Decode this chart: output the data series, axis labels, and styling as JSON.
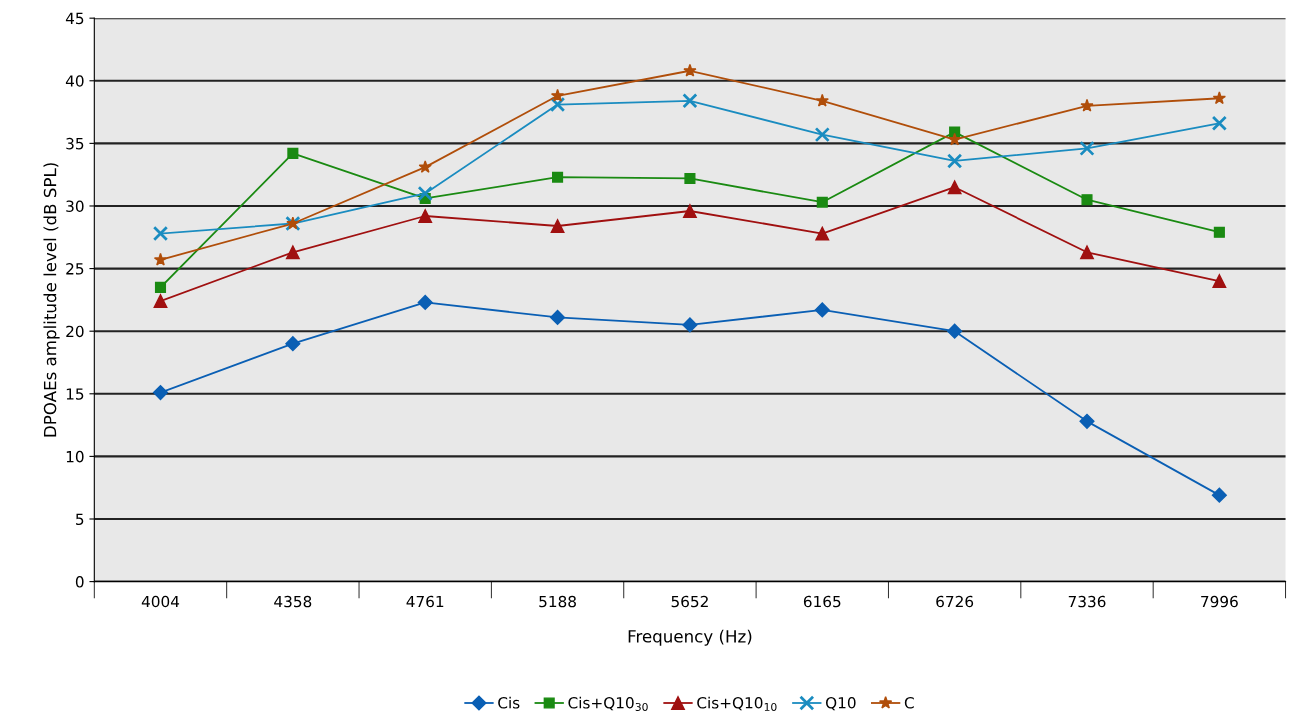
{
  "chart_data": {
    "type": "line",
    "xlabel": "Frequency (Hz)",
    "ylabel": "DPOAEs amplitude level (dB SPL)",
    "categories": [
      "4004",
      "4358",
      "4761",
      "5188",
      "5652",
      "6165",
      "6726",
      "7336",
      "7996"
    ],
    "ylim": [
      0,
      45
    ],
    "yticks": [
      0,
      5,
      10,
      15,
      20,
      25,
      30,
      35,
      40,
      45
    ],
    "grid": "y",
    "legend": "bottom",
    "series": [
      {
        "name": "Cis",
        "color": "#0a5fb4",
        "marker": "diamond",
        "values": [
          15.1,
          19.0,
          22.3,
          21.1,
          20.5,
          21.7,
          20.0,
          12.8,
          6.9
        ]
      },
      {
        "name": "Cis+Q10$_{30}$",
        "color": "#1a8a12",
        "marker": "square",
        "values": [
          23.5,
          34.2,
          30.6,
          32.3,
          32.2,
          30.3,
          35.9,
          30.5,
          27.9
        ]
      },
      {
        "name": "Cis+Q10$_{10}$",
        "color": "#a01010",
        "marker": "triangle",
        "values": [
          22.4,
          26.3,
          29.2,
          28.4,
          29.6,
          27.8,
          31.5,
          26.3,
          24.0
        ]
      },
      {
        "name": "Q10",
        "color": "#1a8cc0",
        "marker": "cross",
        "values": [
          27.8,
          28.6,
          31.0,
          38.1,
          38.4,
          35.7,
          33.6,
          34.6,
          36.6
        ]
      },
      {
        "name": "C",
        "color": "#b04e0a",
        "marker": "star",
        "values": [
          25.7,
          28.6,
          33.1,
          38.8,
          40.8,
          38.4,
          35.3,
          38.0,
          38.6
        ]
      }
    ]
  }
}
